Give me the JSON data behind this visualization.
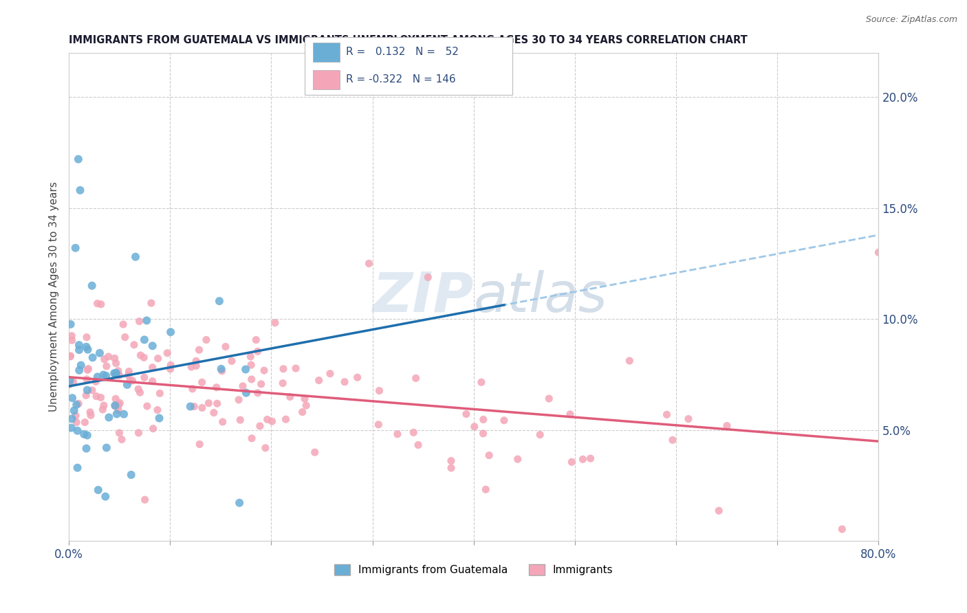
{
  "title": "IMMIGRANTS FROM GUATEMALA VS IMMIGRANTS UNEMPLOYMENT AMONG AGES 30 TO 34 YEARS CORRELATION CHART",
  "source": "Source: ZipAtlas.com",
  "ylabel": "Unemployment Among Ages 30 to 34 years",
  "xlim": [
    0,
    0.8
  ],
  "ylim": [
    0,
    0.22
  ],
  "xtick_positions": [
    0.0,
    0.1,
    0.2,
    0.3,
    0.4,
    0.5,
    0.6,
    0.7,
    0.8
  ],
  "yticks_right": [
    0.05,
    0.1,
    0.15,
    0.2
  ],
  "ytick_right_labels": [
    "5.0%",
    "10.0%",
    "15.0%",
    "20.0%"
  ],
  "legend1_r": "0.132",
  "legend1_n": "52",
  "legend2_r": "-0.322",
  "legend2_n": "146",
  "blue_color": "#6aaed6",
  "pink_color": "#f4a6b8",
  "blue_line_color": "#1f6fad",
  "pink_line_color": "#e05c7a",
  "dashed_line_color": "#9ec8e8",
  "title_color": "#1a1a2e",
  "tick_color": "#2c4a7c",
  "grid_color": "#cccccc",
  "watermark_zip_color": "#c8d8e8",
  "watermark_atlas_color": "#b0c4d8"
}
